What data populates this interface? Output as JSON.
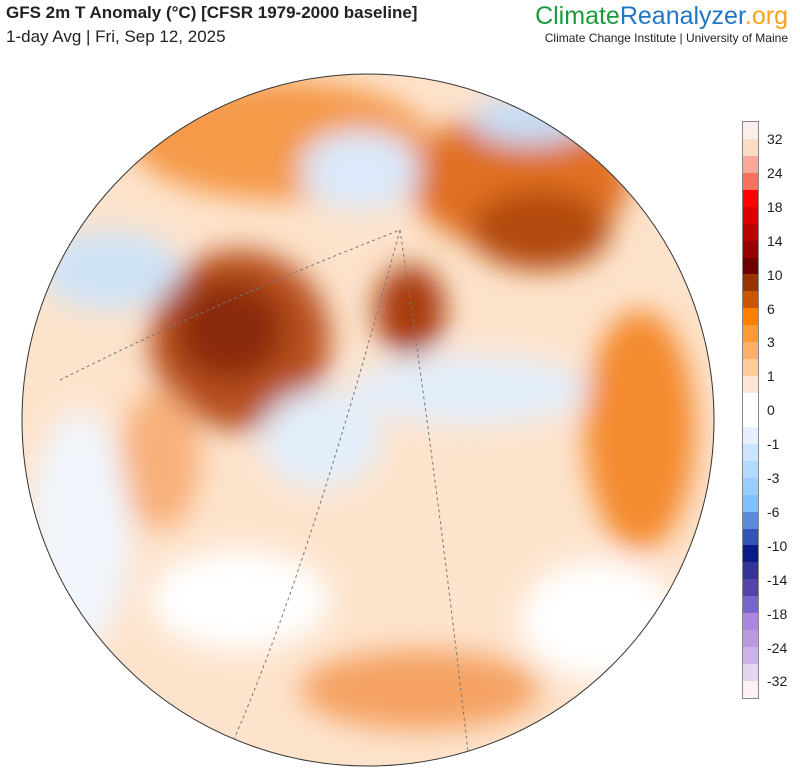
{
  "header": {
    "title": "GFS 2m T Anomaly (°C) [CFSR 1979-2000 baseline]",
    "subtitle": "1-day Avg | Fri, Sep 12, 2025"
  },
  "logo": {
    "part1": "Climate",
    "part2": "Reanalyzer",
    "part3": ".org",
    "institution": "Climate Change Institute | University of Maine"
  },
  "colorbar": {
    "labels": [
      "32",
      "24",
      "18",
      "14",
      "10",
      "6",
      "3",
      "1",
      "0",
      "-1",
      "-3",
      "-6",
      "-10",
      "-14",
      "-18",
      "-24",
      "-32"
    ],
    "colors": [
      "#fdeeee",
      "#fbdcc6",
      "#f9a99b",
      "#f77060",
      "#ff0000",
      "#dd0000",
      "#bb0000",
      "#990000",
      "#700000",
      "#993300",
      "#cc5500",
      "#ff8000",
      "#ff9933",
      "#ffb066",
      "#ffcc99",
      "#ffe6d5",
      "#ffffff",
      "#ffffff",
      "#e6f0ff",
      "#cce4ff",
      "#b3d9ff",
      "#99ccff",
      "#80c0ff",
      "#5a8ad8",
      "#3355bb",
      "#0d1a8c",
      "#333399",
      "#5544aa",
      "#7766cc",
      "#aa88dd",
      "#bb99dd",
      "#ccb3e6",
      "#e6d5ee",
      "#fff0f5"
    ]
  }
}
